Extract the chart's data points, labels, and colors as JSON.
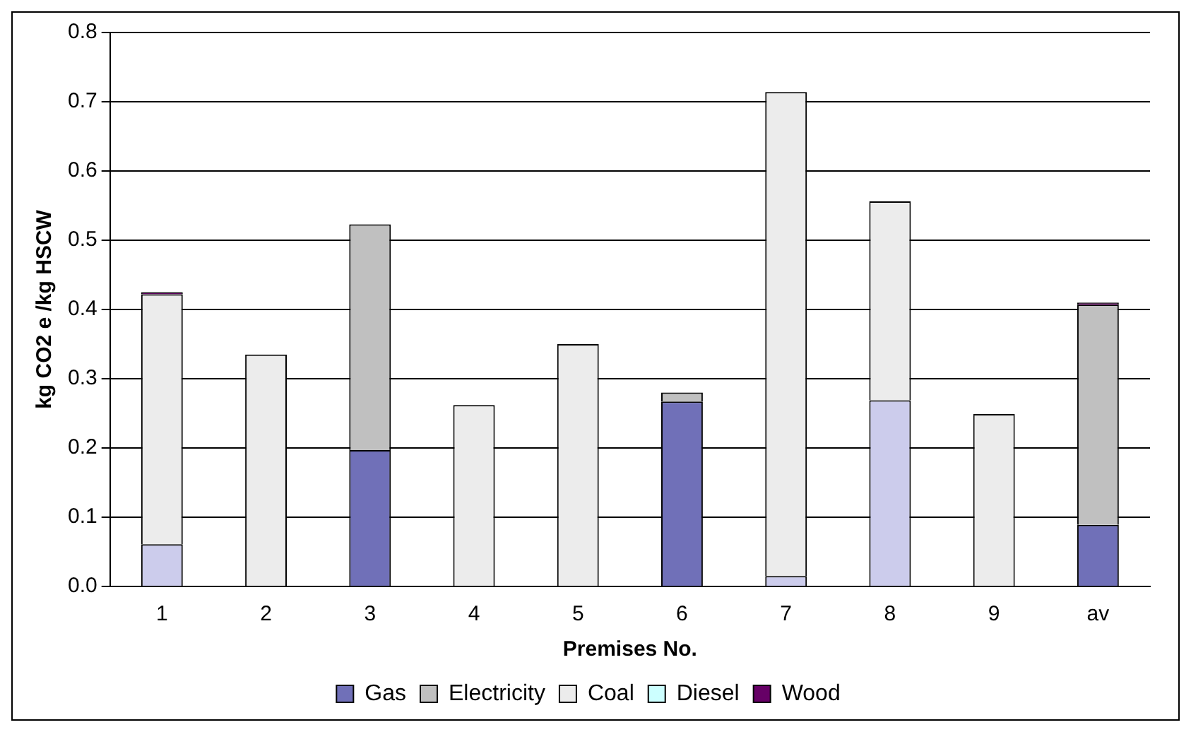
{
  "chart_data": {
    "type": "bar",
    "stacked": true,
    "xlabel": "Premises No.",
    "ylabel": "kg CO2 e /kg HSCW",
    "categories": [
      "1",
      "2",
      "3",
      "4",
      "5",
      "6",
      "7",
      "8",
      "9",
      "av"
    ],
    "series": [
      {
        "name": "Gas",
        "color": "#7070b8",
        "values": [
          0,
          0,
          0.197,
          0,
          0,
          0.267,
          0,
          0,
          0,
          0.089
        ]
      },
      {
        "color": "#ccccec",
        "values": [
          0.061,
          0,
          0,
          0,
          0,
          0,
          0.015,
          0.269,
          0,
          0
        ]
      },
      {
        "name": "Electricity",
        "color": "#c0c0c0",
        "values": [
          0,
          0,
          0.326,
          0,
          0,
          0.013,
          0,
          0,
          0,
          0.318
        ]
      },
      {
        "name": "Coal",
        "color": "#ececec",
        "values": [
          0.361,
          0.335,
          0,
          0.262,
          0.35,
          0,
          0.699,
          0.287,
          0.249,
          0
        ]
      },
      {
        "name": "Diesel",
        "color": "#ccffff",
        "values": [
          0,
          0,
          0,
          0,
          0,
          0,
          0,
          0,
          0,
          0
        ]
      },
      {
        "name": "Wood",
        "color": "#660066",
        "values": [
          0.003,
          0,
          0,
          0,
          0,
          0,
          0,
          0,
          0,
          0.003
        ]
      }
    ],
    "ylim": [
      0,
      0.8
    ],
    "yticks": [
      {
        "value": 0,
        "label": "0.0"
      },
      {
        "value": 0.1,
        "label": "0.1"
      },
      {
        "value": 0.2,
        "label": "0.2"
      },
      {
        "value": 0.3,
        "label": "0.3"
      },
      {
        "value": 0.4,
        "label": "0.4"
      },
      {
        "value": 0.5,
        "label": "0.5"
      },
      {
        "value": 0.6,
        "label": "0.6"
      },
      {
        "value": 0.7,
        "label": "0.7"
      },
      {
        "value": 0.8,
        "label": "0.8"
      }
    ],
    "grid": "y",
    "legend": "bottom"
  }
}
